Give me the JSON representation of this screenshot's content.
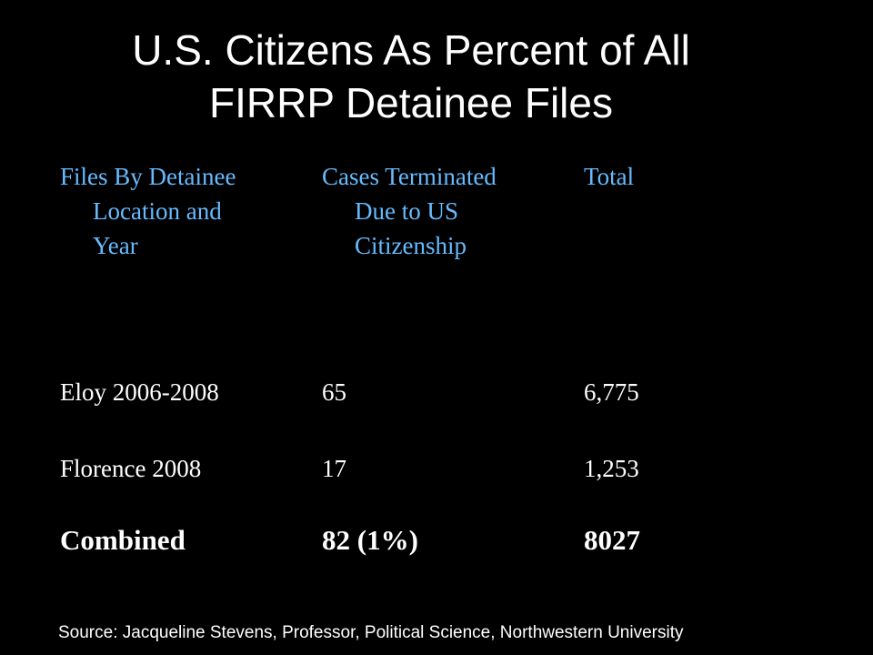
{
  "title": {
    "line1": "U.S. Citizens As Percent of All",
    "line2": "FIRRP Detainee Files"
  },
  "table": {
    "headers": [
      {
        "lines": [
          "Files By Detainee",
          "Location and",
          "Year"
        ]
      },
      {
        "lines": [
          "Cases Terminated",
          "Due to US",
          "Citizenship"
        ]
      },
      {
        "lines": [
          "Total"
        ]
      }
    ],
    "rows": [
      {
        "location": "Eloy 2006-2008",
        "terminated": "65",
        "total": "6,775"
      },
      {
        "location": "Florence 2008",
        "terminated": "17",
        "total": "1,253"
      },
      {
        "location": "Combined",
        "terminated": "82 (1%)",
        "total": "8027"
      }
    ]
  },
  "source": "Source: Jacqueline Stevens, Professor, Political Science, Northwestern University",
  "colors": {
    "background": "#000000",
    "header_text": "#66bbff",
    "body_text": "#ffffff"
  }
}
